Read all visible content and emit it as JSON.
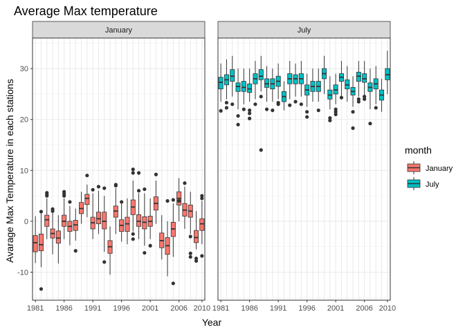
{
  "chart_data": {
    "type": "boxplot",
    "title": "Average Max temperature",
    "xlabel": "Year",
    "ylabel": "Avarage Max Temperature in each stations",
    "ylim": [
      -15.5,
      36
    ],
    "y_ticks": [
      -10,
      0,
      10,
      20,
      30
    ],
    "x_range": [
      1980.5,
      2010.5
    ],
    "x_ticks": [
      1981,
      1986,
      1991,
      1996,
      2001,
      2006,
      2010
    ],
    "legend": {
      "title": "month",
      "position": "right",
      "entries": [
        {
          "label": "January",
          "color": "#F8766D"
        },
        {
          "label": "July",
          "color": "#00BFC4"
        }
      ]
    },
    "panels": [
      {
        "label": "January",
        "color": "#F8766D",
        "years": [
          1981,
          1982,
          1983,
          1984,
          1985,
          1986,
          1987,
          1988,
          1989,
          1990,
          1991,
          1992,
          1993,
          1994,
          1995,
          1996,
          1997,
          1998,
          1999,
          2000,
          2001,
          2002,
          2003,
          2004,
          2005,
          2006,
          2007,
          2008,
          2009,
          2010
        ],
        "boxes": [
          {
            "year": 1981,
            "lw": -8.2,
            "q1": -6.0,
            "med": -4.2,
            "q3": -2.8,
            "uw": 1.0,
            "out": []
          },
          {
            "year": 1982,
            "lw": -9.0,
            "q1": -5.8,
            "med": -4.6,
            "q3": -2.5,
            "uw": 1.6,
            "out": [
              -13.3,
              1.9
            ]
          },
          {
            "year": 1983,
            "lw": -3.5,
            "q1": -1.0,
            "med": 0.3,
            "q3": 1.2,
            "uw": 4.5,
            "out": [
              5.0,
              5.3,
              5.6
            ]
          },
          {
            "year": 1984,
            "lw": -6.5,
            "q1": -3.3,
            "med": -2.4,
            "q3": -1.5,
            "uw": 1.8,
            "out": [
              2.0,
              2.4
            ]
          },
          {
            "year": 1985,
            "lw": -8.3,
            "q1": -4.3,
            "med": -3.3,
            "q3": -1.9,
            "uw": 1.2,
            "out": []
          },
          {
            "year": 1986,
            "lw": -3.5,
            "q1": -1.0,
            "med": 0.0,
            "q3": 1.2,
            "uw": 4.5,
            "out": [
              5.0,
              5.4,
              5.8
            ]
          },
          {
            "year": 1987,
            "lw": -4.7,
            "q1": -2.0,
            "med": -1.0,
            "q3": 0.0,
            "uw": 3.0,
            "out": [
              3.8
            ]
          },
          {
            "year": 1988,
            "lw": -3.8,
            "q1": -1.8,
            "med": -0.7,
            "q3": 0.2,
            "uw": 2.5,
            "out": [
              -5.8
            ]
          },
          {
            "year": 1989,
            "lw": -0.5,
            "q1": 1.5,
            "med": 2.5,
            "q3": 3.7,
            "uw": 5.8,
            "out": []
          },
          {
            "year": 1990,
            "lw": 0.8,
            "q1": 3.3,
            "med": 4.5,
            "q3": 5.3,
            "uw": 7.2,
            "out": [
              9.0
            ]
          },
          {
            "year": 1991,
            "lw": -3.5,
            "q1": -1.5,
            "med": -0.3,
            "q3": 0.8,
            "uw": 5.5,
            "out": [
              6.2
            ]
          },
          {
            "year": 1992,
            "lw": -2.5,
            "q1": -0.5,
            "med": 0.5,
            "q3": 1.8,
            "uw": 6.0,
            "out": [
              6.8
            ]
          },
          {
            "year": 1993,
            "lw": -6.0,
            "q1": -1.5,
            "med": 0.0,
            "q3": 1.8,
            "uw": 5.0,
            "out": [
              -8.0,
              6.5
            ]
          },
          {
            "year": 1994,
            "lw": -10.5,
            "q1": -6.3,
            "med": -5.0,
            "q3": -3.8,
            "uw": -1.0,
            "out": []
          },
          {
            "year": 1995,
            "lw": -2.5,
            "q1": 0.8,
            "med": 2.0,
            "q3": 3.0,
            "uw": 6.5,
            "out": [
              7.0,
              7.2
            ]
          },
          {
            "year": 1996,
            "lw": -4.0,
            "q1": -2.0,
            "med": -0.8,
            "q3": 0.3,
            "uw": 3.5,
            "out": [
              3.8
            ]
          },
          {
            "year": 1997,
            "lw": -4.5,
            "q1": -2.0,
            "med": -0.5,
            "q3": 0.8,
            "uw": 4.5,
            "out": []
          },
          {
            "year": 1998,
            "lw": -2.0,
            "q1": 1.3,
            "med": 2.8,
            "q3": 4.2,
            "uw": 8.0,
            "out": [
              -3.5,
              -2.5,
              9.5,
              10.2
            ]
          },
          {
            "year": 1999,
            "lw": -3.5,
            "q1": -1.0,
            "med": 0.0,
            "q3": 1.3,
            "uw": 5.5,
            "out": [
              6.0,
              9.5
            ]
          },
          {
            "year": 2000,
            "lw": -4.8,
            "q1": -1.5,
            "med": -0.2,
            "q3": 0.9,
            "uw": 5.5,
            "out": [
              -6.2,
              6.3
            ]
          },
          {
            "year": 2001,
            "lw": -3.5,
            "q1": -1.0,
            "med": 0.0,
            "q3": 1.0,
            "uw": 4.5,
            "out": [
              -4.8
            ]
          },
          {
            "year": 2002,
            "lw": -0.5,
            "q1": 2.2,
            "med": 3.5,
            "q3": 4.8,
            "uw": 8.0,
            "out": [
              9.2
            ]
          },
          {
            "year": 2003,
            "lw": -7.5,
            "q1": -5.2,
            "med": -3.8,
            "q3": -2.3,
            "uw": 1.2,
            "out": []
          },
          {
            "year": 2004,
            "lw": -10.8,
            "q1": -6.5,
            "med": -4.8,
            "q3": -3.2,
            "uw": 0.0,
            "out": [
              4.0
            ]
          },
          {
            "year": 2005,
            "lw": -7.0,
            "q1": -3.0,
            "med": -1.5,
            "q3": -0.2,
            "uw": 3.5,
            "out": [
              -12.2,
              4.2
            ]
          },
          {
            "year": 2006,
            "lw": 0.0,
            "q1": 3.2,
            "med": 4.5,
            "q3": 5.8,
            "uw": 8.5,
            "out": [
              4.0
            ]
          },
          {
            "year": 2007,
            "lw": -1.5,
            "q1": 1.0,
            "med": 2.2,
            "q3": 3.5,
            "uw": 6.8,
            "out": [
              7.5
            ]
          },
          {
            "year": 2008,
            "lw": -2.5,
            "q1": 0.8,
            "med": 2.0,
            "q3": 3.2,
            "uw": 5.8,
            "out": [
              -3.0,
              -6.3,
              -7.0
            ]
          },
          {
            "year": 2009,
            "lw": -5.5,
            "q1": -4.2,
            "med": -3.2,
            "q3": -1.8,
            "uw": 2.0,
            "out": [
              -7.3,
              -7.8
            ]
          },
          {
            "year": 2010,
            "lw": -4.5,
            "q1": -1.8,
            "med": -0.5,
            "q3": 0.5,
            "uw": 4.0,
            "out": [
              5.0,
              4.5,
              -6.8
            ]
          }
        ]
      },
      {
        "label": "July",
        "color": "#00BFC4",
        "years": [
          1981,
          1982,
          1983,
          1984,
          1985,
          1986,
          1987,
          1988,
          1989,
          1990,
          1991,
          1992,
          1993,
          1994,
          1995,
          1996,
          1997,
          1998,
          1999,
          2000,
          2001,
          2002,
          2003,
          2004,
          2005,
          2006,
          2007,
          2008,
          2009,
          2010
        ],
        "boxes": [
          {
            "year": 1981,
            "lw": 23.5,
            "q1": 26.0,
            "med": 27.3,
            "q3": 28.3,
            "uw": 31.0,
            "out": [
              21.7
            ]
          },
          {
            "year": 1982,
            "lw": 24.0,
            "q1": 26.8,
            "med": 27.8,
            "q3": 28.8,
            "uw": 31.8,
            "out": [
              22.3,
              23.3
            ]
          },
          {
            "year": 1983,
            "lw": 24.5,
            "q1": 27.5,
            "med": 28.5,
            "q3": 29.8,
            "uw": 32.5,
            "out": [
              23.0
            ]
          },
          {
            "year": 1984,
            "lw": 22.0,
            "q1": 25.5,
            "med": 26.5,
            "q3": 27.2,
            "uw": 30.0,
            "out": [
              20.7,
              19.0
            ]
          },
          {
            "year": 1985,
            "lw": 23.0,
            "q1": 25.5,
            "med": 26.3,
            "q3": 27.5,
            "uw": 30.0,
            "out": [
              22.0
            ]
          },
          {
            "year": 1986,
            "lw": 23.5,
            "q1": 25.3,
            "med": 26.0,
            "q3": 27.0,
            "uw": 30.0,
            "out": [
              21.8,
              21.2,
              20.2
            ]
          },
          {
            "year": 1987,
            "lw": 24.0,
            "q1": 27.0,
            "med": 28.0,
            "q3": 29.0,
            "uw": 31.5,
            "out": [
              23.0
            ]
          },
          {
            "year": 1988,
            "lw": 25.5,
            "q1": 27.8,
            "med": 28.5,
            "q3": 29.8,
            "uw": 32.5,
            "out": [
              24.5,
              14.0
            ]
          },
          {
            "year": 1989,
            "lw": 23.5,
            "q1": 26.3,
            "med": 27.0,
            "q3": 28.0,
            "uw": 30.5,
            "out": [
              22.0
            ]
          },
          {
            "year": 1990,
            "lw": 23.5,
            "q1": 26.0,
            "med": 27.0,
            "q3": 28.0,
            "uw": 30.0,
            "out": [
              21.8
            ]
          },
          {
            "year": 1991,
            "lw": 24.0,
            "q1": 26.5,
            "med": 27.5,
            "q3": 28.5,
            "uw": 31.0,
            "out": [
              23.3,
              23.0
            ]
          },
          {
            "year": 1992,
            "lw": 21.8,
            "q1": 23.5,
            "med": 24.5,
            "q3": 25.5,
            "uw": 27.5,
            "out": []
          },
          {
            "year": 1993,
            "lw": 24.0,
            "q1": 27.0,
            "med": 28.0,
            "q3": 29.0,
            "uw": 31.5,
            "out": [
              22.8
            ]
          },
          {
            "year": 1994,
            "lw": 24.5,
            "q1": 27.0,
            "med": 28.0,
            "q3": 28.8,
            "uw": 31.0,
            "out": [
              23.5
            ]
          },
          {
            "year": 1995,
            "lw": 24.5,
            "q1": 27.0,
            "med": 28.0,
            "q3": 29.0,
            "uw": 31.5,
            "out": [
              23.0
            ]
          },
          {
            "year": 1996,
            "lw": 22.5,
            "q1": 24.8,
            "med": 25.8,
            "q3": 26.8,
            "uw": 29.0,
            "out": [
              21.5,
              20.5
            ]
          },
          {
            "year": 1997,
            "lw": 23.5,
            "q1": 25.5,
            "med": 26.5,
            "q3": 27.5,
            "uw": 30.0,
            "out": []
          },
          {
            "year": 1998,
            "lw": 23.5,
            "q1": 25.5,
            "med": 26.5,
            "q3": 27.5,
            "uw": 30.0,
            "out": [
              21.8
            ]
          },
          {
            "year": 1999,
            "lw": 25.0,
            "q1": 28.0,
            "med": 29.0,
            "q3": 30.0,
            "uw": 32.5,
            "out": []
          },
          {
            "year": 2000,
            "lw": 22.0,
            "q1": 24.0,
            "med": 24.8,
            "q3": 25.8,
            "uw": 28.5,
            "out": [
              20.3,
              19.8
            ]
          },
          {
            "year": 2001,
            "lw": 23.0,
            "q1": 25.0,
            "med": 25.8,
            "q3": 26.8,
            "uw": 29.0,
            "out": [
              22.0,
              21.5,
              21.0
            ]
          },
          {
            "year": 2002,
            "lw": 24.5,
            "q1": 27.5,
            "med": 28.3,
            "q3": 29.0,
            "uw": 31.5,
            "out": [
              24.3
            ]
          },
          {
            "year": 2003,
            "lw": 23.5,
            "q1": 26.0,
            "med": 26.8,
            "q3": 27.8,
            "uw": 30.5,
            "out": []
          },
          {
            "year": 2004,
            "lw": 22.5,
            "q1": 24.8,
            "med": 25.5,
            "q3": 26.3,
            "uw": 28.5,
            "out": [
              21.5,
              18.3
            ]
          },
          {
            "year": 2005,
            "lw": 24.5,
            "q1": 27.5,
            "med": 28.5,
            "q3": 29.3,
            "uw": 31.5,
            "out": [
              24.0,
              23.5
            ]
          },
          {
            "year": 2006,
            "lw": 24.5,
            "q1": 27.3,
            "med": 28.0,
            "q3": 29.0,
            "uw": 31.5,
            "out": [
              24.5,
              24.0
            ]
          },
          {
            "year": 2007,
            "lw": 22.0,
            "q1": 25.5,
            "med": 26.3,
            "q3": 27.2,
            "uw": 30.0,
            "out": [
              19.2
            ]
          },
          {
            "year": 2008,
            "lw": 23.0,
            "q1": 26.0,
            "med": 27.0,
            "q3": 28.0,
            "uw": 30.5,
            "out": [
              22.3
            ]
          },
          {
            "year": 2009,
            "lw": 21.5,
            "q1": 23.8,
            "med": 24.8,
            "q3": 25.8,
            "uw": 28.0,
            "out": []
          },
          {
            "year": 2010,
            "lw": 25.0,
            "q1": 27.8,
            "med": 28.8,
            "q3": 30.0,
            "uw": 33.5,
            "out": []
          }
        ]
      }
    ]
  }
}
